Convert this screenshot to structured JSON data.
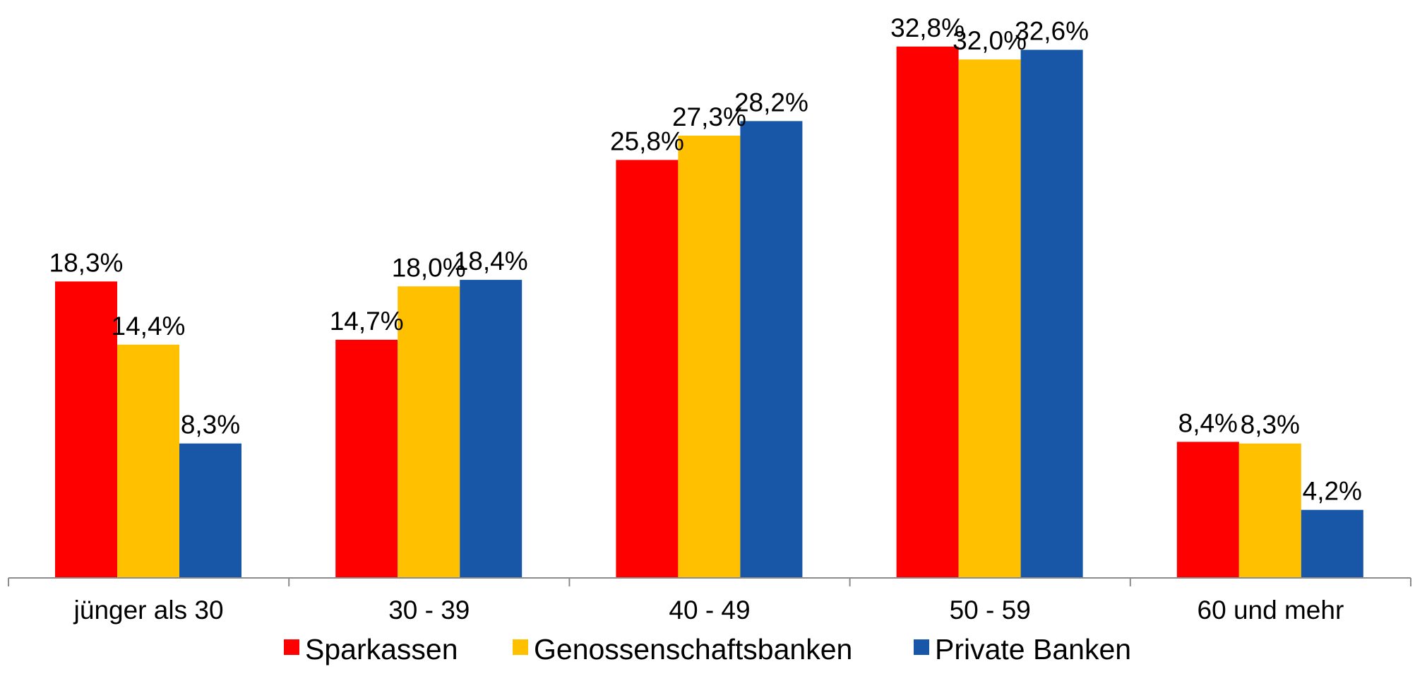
{
  "chart_data": {
    "type": "bar",
    "title": "",
    "xlabel": "",
    "ylabel": "",
    "categories": [
      "jünger als 30",
      "30 - 39",
      "40 - 49",
      "50 - 59",
      "60 und mehr"
    ],
    "ylim": [
      0,
      34
    ],
    "grid": false,
    "legend_position": "bottom",
    "series": [
      {
        "name": "Sparkassen",
        "color": "#FF0000",
        "values": [
          18.3,
          14.7,
          25.8,
          32.8,
          8.4
        ],
        "labels": [
          "18,3%",
          "14,7%",
          "25,8%",
          "32,8%",
          "8,4%"
        ]
      },
      {
        "name": "Genossenschaftsbanken",
        "color": "#FFC000",
        "values": [
          14.4,
          18.0,
          27.3,
          32.0,
          8.3
        ],
        "labels": [
          "14,4%",
          "18,0%",
          "27,3%",
          "32,0%",
          "8,3%"
        ]
      },
      {
        "name": "Private Banken",
        "color": "#1857A8",
        "values": [
          8.3,
          18.4,
          28.2,
          32.6,
          4.2
        ],
        "labels": [
          "8,3%",
          "18,4%",
          "28,2%",
          "32,6%",
          "4,2%"
        ]
      }
    ]
  }
}
